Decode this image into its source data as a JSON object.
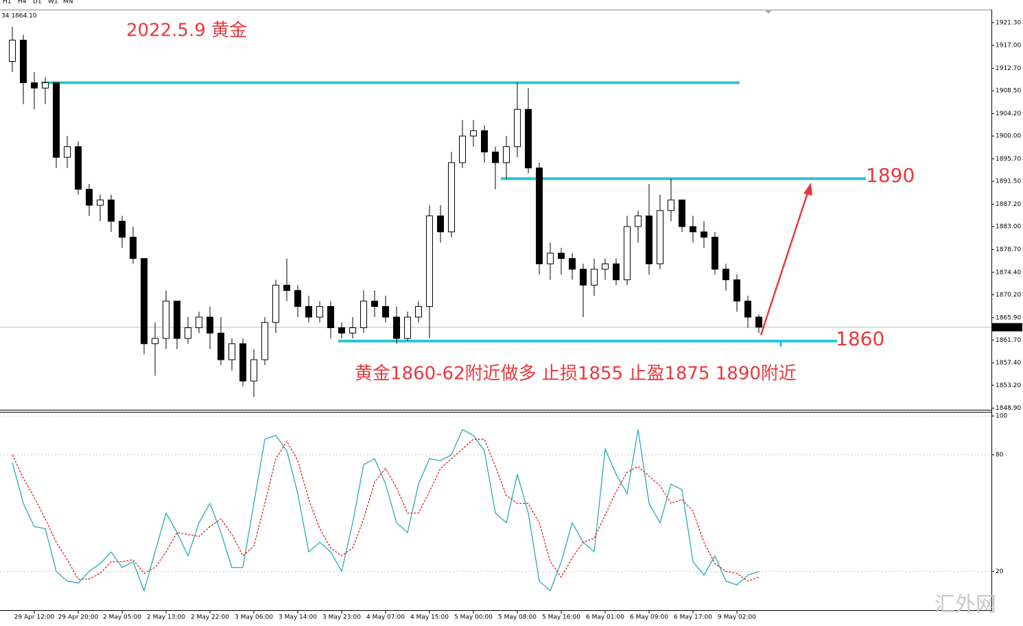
{
  "toolbar": [
    "H1",
    "H4",
    "D1",
    "W1",
    "MN"
  ],
  "info": "34 1864.10",
  "watermark": "汇外网",
  "chart_data": [
    {
      "type": "candlestick",
      "title": "2022.5.9 黄金",
      "annotations": [
        "1890",
        "1860",
        "黄金1860-62附近做多 止损1855 止盈1875 1890附近"
      ],
      "categories": [
        null,
        null,
        "29 Apr 12:00",
        null,
        null,
        null,
        "29 Apr 20:00",
        null,
        null,
        null,
        "2 May 05:00",
        null,
        null,
        null,
        "2 May 13:00",
        null,
        null,
        null,
        "2 May 22:00",
        null,
        null,
        null,
        "3 May 06:00",
        null,
        null,
        null,
        "3 May 14:00",
        null,
        null,
        null,
        "3 May 23:00",
        null,
        null,
        null,
        "4 May 07:00",
        null,
        null,
        null,
        "4 May 15:00",
        null,
        null,
        null,
        "5 May 00:00",
        null,
        null,
        null,
        "5 May 08:00",
        null,
        null,
        null,
        "5 May 16:00",
        null,
        null,
        null,
        "6 May 01:00",
        null,
        null,
        null,
        "6 May 09:00",
        null,
        null,
        null,
        "6 May 17:00",
        null,
        null,
        null,
        "9 May 02:00",
        null,
        null
      ],
      "open": [
        1914,
        1918,
        1910,
        1909,
        1910,
        1896,
        1898,
        1890,
        1887,
        1888,
        1884,
        1881,
        1877,
        1861,
        1862,
        1869,
        1862,
        1864,
        1866,
        1863,
        1858,
        1861,
        1854,
        1858,
        1865,
        1872,
        1871,
        1868,
        1866,
        1868,
        1864,
        1863,
        1864,
        1869,
        1868,
        1866,
        1862,
        1866,
        1868,
        1885,
        1882,
        1895,
        1900,
        1901,
        1897,
        1895,
        1898,
        1905,
        1894,
        1876,
        1878,
        1877,
        1875,
        1872,
        1875,
        1876,
        1873,
        1883,
        1885,
        1876,
        1886,
        1888,
        1883,
        1882,
        1881,
        1875,
        1873,
        1869,
        1866
      ],
      "high": [
        1920.5,
        1919,
        1912,
        1911,
        1910,
        1900,
        1899,
        1891,
        1889,
        1889,
        1885,
        1883,
        1877,
        1865,
        1871,
        1869,
        1866,
        1867,
        1868,
        1866,
        1862,
        1862,
        1860,
        1866,
        1873,
        1877,
        1872,
        1870,
        1869,
        1869,
        1865,
        1866,
        1871,
        1871,
        1870,
        1868,
        1867,
        1869,
        1887,
        1887,
        1897,
        1903,
        1903,
        1902,
        1898,
        1900,
        1910,
        1909,
        1895,
        1880,
        1879,
        1878,
        1876,
        1877,
        1877,
        1877,
        1885,
        1886,
        1891,
        1889,
        1892,
        1888,
        1885,
        1884,
        1882,
        1876,
        1874,
        1870,
        1866.5
      ],
      "low": [
        1912,
        1906,
        1905,
        1906,
        1894,
        1894,
        1889,
        1885,
        1884,
        1882,
        1879,
        1876,
        1859,
        1855,
        1860,
        1860,
        1861,
        1863,
        1860,
        1857,
        1856,
        1853,
        1851,
        1857,
        1863,
        1869,
        1866,
        1865,
        1865,
        1862,
        1862,
        1862,
        1863,
        1866,
        1865,
        1861,
        1861.5,
        1865,
        1862,
        1880,
        1881,
        1894,
        1898,
        1895,
        1890,
        1892,
        1896,
        1893,
        1874,
        1873,
        1874,
        1873,
        1866,
        1870,
        1873,
        1872,
        1872,
        1880,
        1874,
        1875,
        1884,
        1882,
        1880,
        1879,
        1874,
        1871,
        1867,
        1864,
        1863
      ],
      "close": [
        1918,
        1910,
        1909,
        1910,
        1896,
        1898,
        1890,
        1887,
        1888,
        1884,
        1881,
        1877,
        1861,
        1862,
        1869,
        1862,
        1864,
        1866,
        1863,
        1858,
        1861,
        1854,
        1858,
        1865,
        1872,
        1871,
        1868,
        1866,
        1868,
        1864,
        1863,
        1864,
        1869,
        1868,
        1866,
        1862,
        1866,
        1868,
        1885,
        1882,
        1895,
        1900,
        1901,
        1897,
        1895,
        1898,
        1905,
        1894,
        1876,
        1878,
        1877,
        1875,
        1872,
        1875,
        1876,
        1873,
        1883,
        1885,
        1876,
        1886,
        1888,
        1883,
        1882,
        1881,
        1875,
        1873,
        1869,
        1866,
        1864.1
      ],
      "levels": [
        1910,
        1892,
        1861.5
      ],
      "level_color": "#27c7d4",
      "last": {
        "value": 1864.1,
        "label": "1864.10"
      },
      "ylim": [
        1848.6,
        1923.6
      ],
      "yticks": [
        {
          "value": 1921.3,
          "label": "1921.30"
        },
        {
          "value": 1917,
          "label": "1917.00"
        },
        {
          "value": 1912.7,
          "label": "1912.70"
        },
        {
          "value": 1908.5,
          "label": "1908.50"
        },
        {
          "value": 1904.2,
          "label": "1904.20"
        },
        {
          "value": 1900,
          "label": "1900.00"
        },
        {
          "value": 1895.7,
          "label": "1895.70"
        },
        {
          "value": 1891.5,
          "label": "1891.50"
        },
        {
          "value": 1887.2,
          "label": "1887.20"
        },
        {
          "value": 1883,
          "label": "1883.00"
        },
        {
          "value": 1878.7,
          "label": "1878.70"
        },
        {
          "value": 1874.4,
          "label": "1874.40"
        },
        {
          "value": 1870.2,
          "label": "1870.20"
        },
        {
          "value": 1865.9,
          "label": "1865.90"
        },
        {
          "value": 1861.7,
          "label": "1861.70"
        },
        {
          "value": 1857.4,
          "label": "1857.40"
        },
        {
          "value": 1853.2,
          "label": "1853.20"
        },
        {
          "value": 1848.9,
          "label": "1848.90"
        }
      ]
    },
    {
      "type": "line",
      "series": [
        {
          "color": "#2aa9b8",
          "values": [
            76,
            55,
            43,
            42,
            20,
            15,
            14,
            20,
            24,
            30,
            22,
            25,
            10,
            30,
            50,
            40,
            28,
            45,
            55,
            40,
            22,
            22,
            55,
            88,
            90,
            82,
            60,
            30,
            35,
            30,
            20,
            45,
            75,
            78,
            65,
            45,
            40,
            65,
            78,
            77,
            80,
            93,
            90,
            82,
            50,
            45,
            70,
            50,
            15,
            10,
            25,
            45,
            35,
            30,
            83,
            70,
            60,
            93,
            55,
            45,
            65,
            62,
            25,
            18,
            28,
            15,
            13,
            18,
            20
          ]
        },
        {
          "color": "#e02020",
          "dashed": true,
          "values": [
            80,
            68,
            58,
            47,
            35,
            26,
            16,
            16,
            19,
            25,
            25,
            26,
            19,
            22,
            30,
            40,
            39,
            38,
            43,
            47,
            39,
            28,
            33,
            55,
            78,
            87,
            77,
            57,
            42,
            32,
            28,
            32,
            47,
            66,
            73,
            63,
            50,
            50,
            61,
            73,
            78,
            83,
            88,
            88,
            74,
            59,
            55,
            55,
            45,
            25,
            17,
            27,
            35,
            37,
            49,
            61,
            71,
            74,
            69,
            64,
            55,
            57,
            51,
            35,
            24,
            20,
            19,
            15,
            17
          ]
        }
      ],
      "ylim": [
        0,
        100
      ],
      "yticks": [
        100,
        80,
        20
      ]
    }
  ]
}
